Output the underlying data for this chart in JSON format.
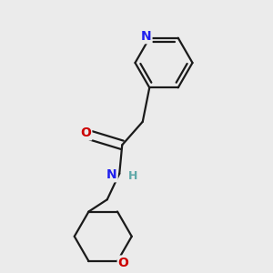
{
  "background_color": "#ebebeb",
  "bond_color": "#1a1a1a",
  "N_color": "#2020ee",
  "O_color": "#cc0000",
  "H_color": "#5fa8a8",
  "bond_width": 1.6,
  "dbo": 0.018,
  "figsize": [
    3.0,
    3.0
  ],
  "dpi": 100,
  "xlim": [
    0.0,
    1.0
  ],
  "ylim": [
    0.0,
    1.0
  ]
}
